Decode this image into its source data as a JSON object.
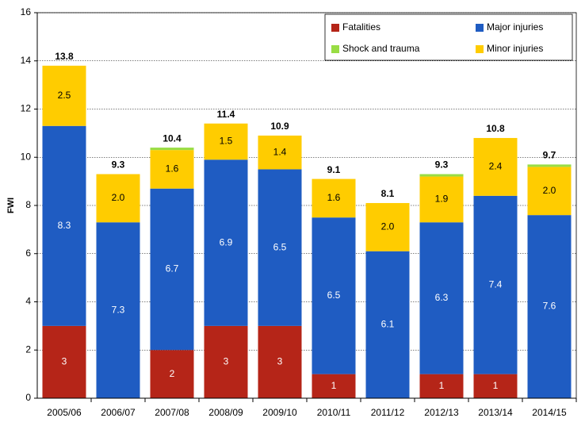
{
  "chart_data": {
    "type": "stacked_bar",
    "y_label": "FWI",
    "categories": [
      "2005/06",
      "2006/07",
      "2007/08",
      "2008/09",
      "2009/10",
      "2010/11",
      "2011/12",
      "2012/13",
      "2013/14",
      "2014/15"
    ],
    "series": [
      {
        "name": "Fatalities",
        "color": "#b52518",
        "values": [
          3,
          0,
          2,
          3,
          3,
          1,
          0,
          1,
          1,
          0
        ],
        "value_labels": [
          "3",
          null,
          "2",
          "3",
          "3",
          "1",
          null,
          "1",
          "1",
          null
        ]
      },
      {
        "name": "Major injuries",
        "color": "#1f5cc2",
        "values": [
          8.3,
          7.3,
          6.7,
          6.9,
          6.5,
          6.5,
          6.1,
          6.3,
          7.4,
          7.6
        ]
      },
      {
        "name": "Minor injuries",
        "color": "#ffcc00",
        "values": [
          2.5,
          2.0,
          1.6,
          1.5,
          1.4,
          1.6,
          2.0,
          1.9,
          2.4,
          2.0
        ],
        "value_labels": [
          "2.5",
          "2.0",
          "1.6",
          "1.5",
          "1.4",
          "1.6",
          "2.0",
          "1.9",
          "2.4",
          "2.0"
        ]
      },
      {
        "name": "Shock and trauma",
        "color": "#99dd44",
        "values": [
          0,
          0,
          0.1,
          0,
          0,
          0,
          0,
          0.1,
          0,
          0.1
        ]
      }
    ],
    "totals": [
      13.8,
      9.3,
      10.4,
      11.4,
      10.9,
      9.1,
      8.1,
      9.3,
      10.8,
      9.7
    ],
    "ylim": [
      0,
      16
    ],
    "yticks": [
      0,
      2,
      4,
      6,
      8,
      10,
      12,
      14,
      16
    ],
    "grid": true
  }
}
